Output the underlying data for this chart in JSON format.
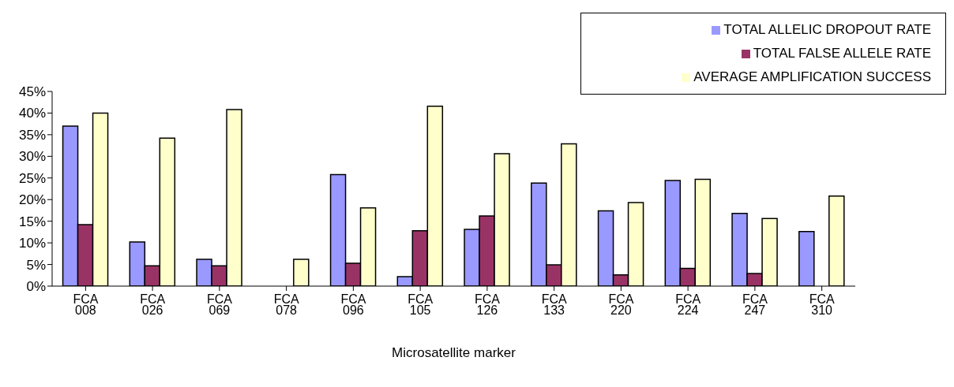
{
  "chart_data": {
    "type": "bar",
    "xlabel": "Microsatellite marker",
    "categories": [
      "FCA 008",
      "FCA 026",
      "FCA 069",
      "FCA 078",
      "FCA 096",
      "FCA 105",
      "FCA 126",
      "FCA 133",
      "FCA 220",
      "FCA 224",
      "FCA 247",
      "FCA 310"
    ],
    "series": [
      {
        "name": "TOTAL ALLELIC DROPOUT RATE",
        "color": "#9999ff",
        "values": [
          37,
          10.2,
          6.2,
          0,
          25.8,
          2.2,
          13.1,
          23.8,
          17.4,
          24.4,
          16.8,
          12.6
        ]
      },
      {
        "name": "TOTAL FALSE ALLELE RATE",
        "color": "#993366",
        "values": [
          14.2,
          4.7,
          4.7,
          0,
          5.3,
          12.8,
          16.2,
          4.9,
          2.6,
          4.1,
          2.9,
          0
        ]
      },
      {
        "name": "AVERAGE AMPLIFICATION SUCCESS",
        "color": "#ffffcc",
        "values": [
          40,
          34.2,
          40.8,
          6.2,
          18.1,
          41.6,
          30.6,
          32.9,
          19.3,
          24.7,
          15.6,
          20.8
        ]
      }
    ],
    "ylim": [
      0,
      45
    ],
    "yticks": [
      {
        "value": 0,
        "label": "0%"
      },
      {
        "value": 5,
        "label": "5%"
      },
      {
        "value": 10,
        "label": "10%"
      },
      {
        "value": 15,
        "label": "15%"
      },
      {
        "value": 20,
        "label": "20%"
      },
      {
        "value": 25,
        "label": "25%"
      },
      {
        "value": 30,
        "label": "30%"
      },
      {
        "value": 35,
        "label": "35%"
      },
      {
        "value": 40,
        "label": "40%"
      },
      {
        "value": 45,
        "label": "45%"
      }
    ],
    "grid": false,
    "legend": "top right"
  }
}
